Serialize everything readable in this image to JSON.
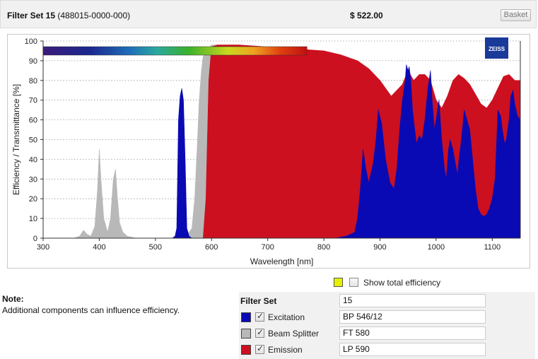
{
  "header": {
    "filter_set_label": "Filter Set 15",
    "part_number": "(488015-0000-000)",
    "price": "$ 522.00",
    "basket_label": "Basket"
  },
  "chart": {
    "logo_text": "ZEISS"
  },
  "chart_data": {
    "type": "area",
    "xlabel": "Wavelength [nm]",
    "ylabel": "Efficiency / Transmittance [%]",
    "xlim": [
      300,
      1150
    ],
    "ylim": [
      0,
      100
    ],
    "xticks": [
      300,
      400,
      500,
      600,
      700,
      800,
      900,
      1000,
      1100
    ],
    "yticks": [
      0,
      10,
      20,
      30,
      40,
      50,
      60,
      70,
      80,
      90,
      100
    ],
    "grid": "horizontal dotted",
    "spectrum_bar": {
      "from_nm": 300,
      "to_nm": 770
    },
    "series": [
      {
        "name": "Beam Splitter",
        "color": "#b8b8b8",
        "x": [
          300,
          355,
          365,
          372,
          378,
          385,
          392,
          397,
          400,
          403,
          408,
          415,
          420,
          425,
          429,
          432,
          436,
          442,
          450,
          465,
          500,
          535,
          545,
          555,
          565,
          570,
          575,
          578,
          582,
          585,
          589,
          593,
          597,
          600,
          610,
          620,
          650
        ],
        "y": [
          0,
          0,
          1,
          4,
          2,
          1,
          6,
          25,
          45,
          30,
          10,
          3,
          10,
          30,
          35,
          22,
          8,
          3,
          1,
          0,
          0,
          0,
          0,
          1,
          5,
          20,
          50,
          70,
          85,
          92,
          95,
          96,
          97,
          98,
          98,
          98,
          98
        ]
      },
      {
        "name": "Emission",
        "color": "#cc1020",
        "x": [
          570,
          575,
          580,
          585,
          590,
          595,
          600,
          610,
          650,
          700,
          750,
          800,
          830,
          850,
          860,
          870,
          880,
          900,
          920,
          940,
          950,
          960,
          970,
          980,
          990,
          1000,
          1010,
          1020,
          1030,
          1040,
          1050,
          1060,
          1070,
          1080,
          1090,
          1100,
          1110,
          1120,
          1130,
          1140,
          1150
        ],
        "y": [
          0,
          0,
          0,
          0,
          20,
          80,
          97,
          98,
          98,
          97,
          96,
          95,
          93,
          91,
          90,
          88,
          86,
          80,
          72,
          78,
          85,
          80,
          83,
          83,
          80,
          70,
          66,
          72,
          80,
          83,
          81,
          78,
          73,
          68,
          66,
          70,
          76,
          82,
          83,
          80,
          80
        ]
      },
      {
        "name": "Excitation",
        "color": "#0a0ab4",
        "x": [
          300,
          530,
          535,
          538,
          541,
          544,
          547,
          550,
          553,
          556,
          560,
          565,
          800,
          820,
          840,
          855,
          860,
          865,
          870,
          875,
          880,
          888,
          893,
          897,
          903,
          910,
          918,
          925,
          930,
          935,
          940,
          945,
          947,
          950,
          952,
          955,
          958,
          962,
          965,
          970,
          975,
          980,
          985,
          990,
          993,
          997,
          1000,
          1005,
          1010,
          1015,
          1018,
          1022,
          1025,
          1030,
          1033,
          1038,
          1040,
          1045,
          1050,
          1055,
          1060,
          1065,
          1070,
          1075,
          1080,
          1085,
          1090,
          1095,
          1100,
          1105,
          1108,
          1110,
          1115,
          1118,
          1122,
          1125,
          1130,
          1133,
          1137,
          1140,
          1145,
          1150
        ],
        "y": [
          0,
          0,
          1,
          5,
          60,
          72,
          76,
          70,
          40,
          5,
          1,
          0,
          0,
          0,
          1,
          3,
          10,
          25,
          45,
          35,
          28,
          38,
          50,
          65,
          58,
          40,
          28,
          25,
          35,
          55,
          70,
          80,
          88,
          85,
          87,
          80,
          65,
          55,
          48,
          52,
          50,
          60,
          75,
          85,
          70,
          55,
          60,
          70,
          50,
          35,
          30,
          45,
          50,
          45,
          40,
          32,
          38,
          50,
          65,
          60,
          55,
          40,
          25,
          15,
          12,
          11,
          12,
          15,
          20,
          30,
          50,
          65,
          62,
          55,
          48,
          50,
          60,
          72,
          75,
          68,
          62,
          60
        ]
      }
    ]
  },
  "controls": {
    "show_total_label": "Show total efficiency"
  },
  "note": {
    "title": "Note:",
    "text": "Additional components can influence efficiency."
  },
  "filter_set": {
    "label": "Filter Set",
    "value": "15",
    "components": [
      {
        "name": "Excitation",
        "value": "BP 546/12",
        "color": "#0a0ab4"
      },
      {
        "name": "Beam Splitter",
        "value": "FT 580",
        "color": "#b8b8b8"
      },
      {
        "name": "Emission",
        "value": "LP 590",
        "color": "#cc1020"
      }
    ]
  }
}
